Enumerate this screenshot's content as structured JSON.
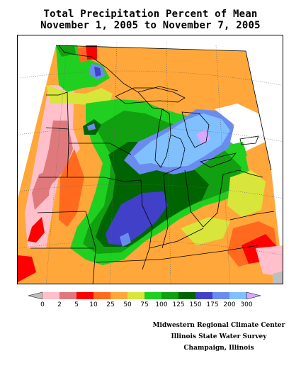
{
  "title": {
    "line1": "Total Precipitation Percent of Mean",
    "line2": "November 1, 2005 to November 7, 2005"
  },
  "legend": {
    "labels": [
      "0",
      "2",
      "5",
      "10",
      "25",
      "50",
      "75",
      "100",
      "125",
      "150",
      "175",
      "200",
      "300"
    ],
    "colors": {
      "below_min": "#bebebe",
      "bins": [
        "#ffc0cb",
        "#e0797c",
        "#ff0000",
        "#ff6a1e",
        "#ffa73a",
        "#d8e53a",
        "#20d020",
        "#10a010",
        "#006400",
        "#4040c8",
        "#6a8cf0",
        "#80c0ff"
      ],
      "above_max": "#d8a8ff"
    }
  },
  "credits": {
    "line1": "Midwestern Regional Climate Center",
    "line2": "Illinois State Water Survey",
    "line3": "Champaign, Illinois"
  },
  "map_colors": {
    "pink": "#ffc0cb",
    "rose": "#e0797c",
    "red": "#ff0000",
    "orange_red": "#ff6a1e",
    "orange": "#ffa73a",
    "yellow_green": "#d8e53a",
    "green": "#20d020",
    "mid_green": "#10a010",
    "dark_green": "#006400",
    "navy": "#4040c8",
    "blue": "#6a8cf0",
    "light_blue": "#80c0ff",
    "lavender": "#d8a8ff",
    "grey": "#bebebe",
    "boundary": "#000000",
    "graticule": "#666666"
  }
}
